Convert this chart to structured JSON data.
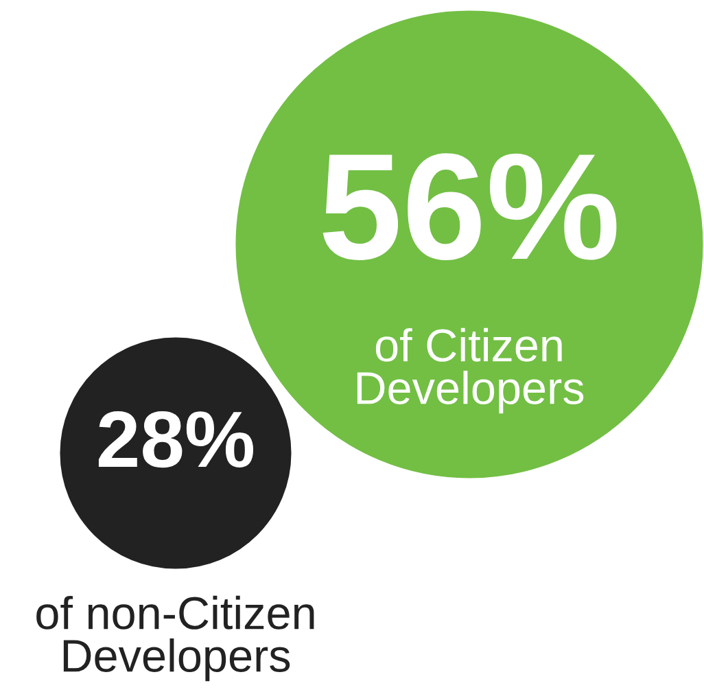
{
  "chart_data": {
    "type": "other",
    "categories": [
      "of Citizen Developers",
      "of non-Citizen Developers"
    ],
    "values": [
      56,
      28
    ],
    "value_labels": [
      "56%",
      "28%"
    ],
    "colors": [
      "#72bf44",
      "#222222"
    ]
  }
}
